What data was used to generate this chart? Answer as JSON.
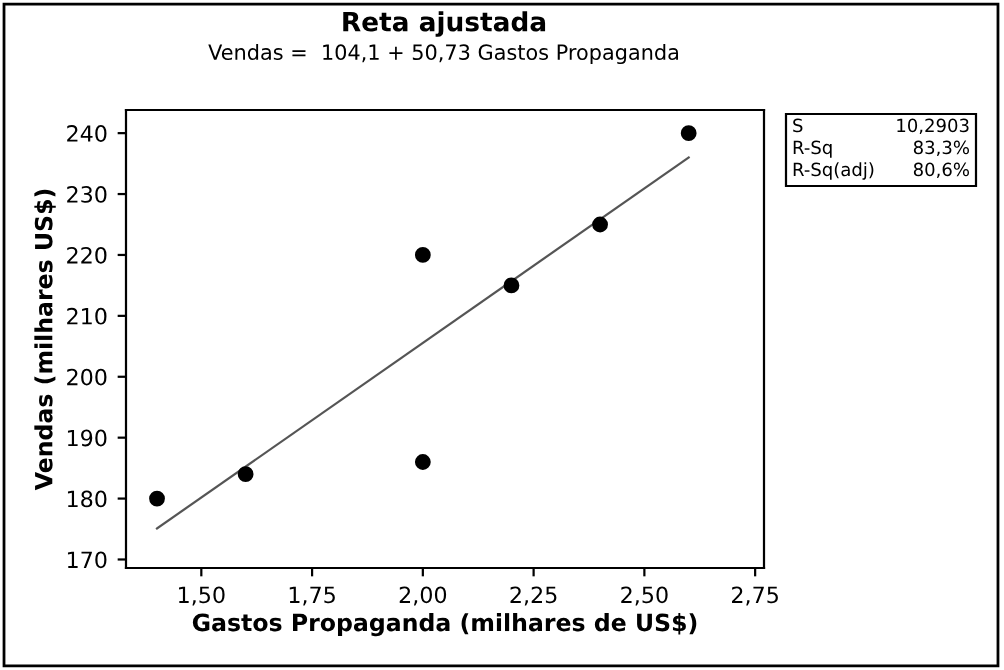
{
  "chart_data": {
    "type": "scatter",
    "title": "Reta ajustada",
    "subtitle": "Vendas =  104,1 + 50,73 Gastos Propaganda",
    "xlabel": "Gastos Propaganda (milhares de US$)",
    "ylabel": "Vendas (milhares US$)",
    "series": [
      {
        "color": "#000000",
        "marker": "circle",
        "x": [
          1.4,
          1.6,
          2.0,
          2.0,
          2.2,
          2.4,
          2.6
        ],
        "values": [
          180,
          184,
          220,
          186,
          215,
          225,
          240
        ]
      },
      {
        "type": "line",
        "color": "#555555",
        "line_style": "solid",
        "marker": "none",
        "x": [
          1.4,
          2.6
        ],
        "values": [
          175.1,
          236.0
        ]
      }
    ],
    "xlim": [
      1.33,
      2.77
    ],
    "ylim": [
      168.6,
      243.8
    ],
    "xticks": [
      {
        "value": 1.5,
        "label": "1,50"
      },
      {
        "value": 1.75,
        "label": "1,75"
      },
      {
        "value": 2.0,
        "label": "2,00"
      },
      {
        "value": 2.25,
        "label": "2,25"
      },
      {
        "value": 2.5,
        "label": "2,50"
      },
      {
        "value": 2.75,
        "label": "2,75"
      }
    ],
    "yticks": [
      170,
      180,
      190,
      200,
      210,
      220,
      230,
      240
    ],
    "grid": false,
    "legend": false,
    "annotations": [
      "S",
      "10,2903",
      "R-Sq",
      "83,3%",
      "R-Sq(adj)",
      "80,6%"
    ]
  }
}
